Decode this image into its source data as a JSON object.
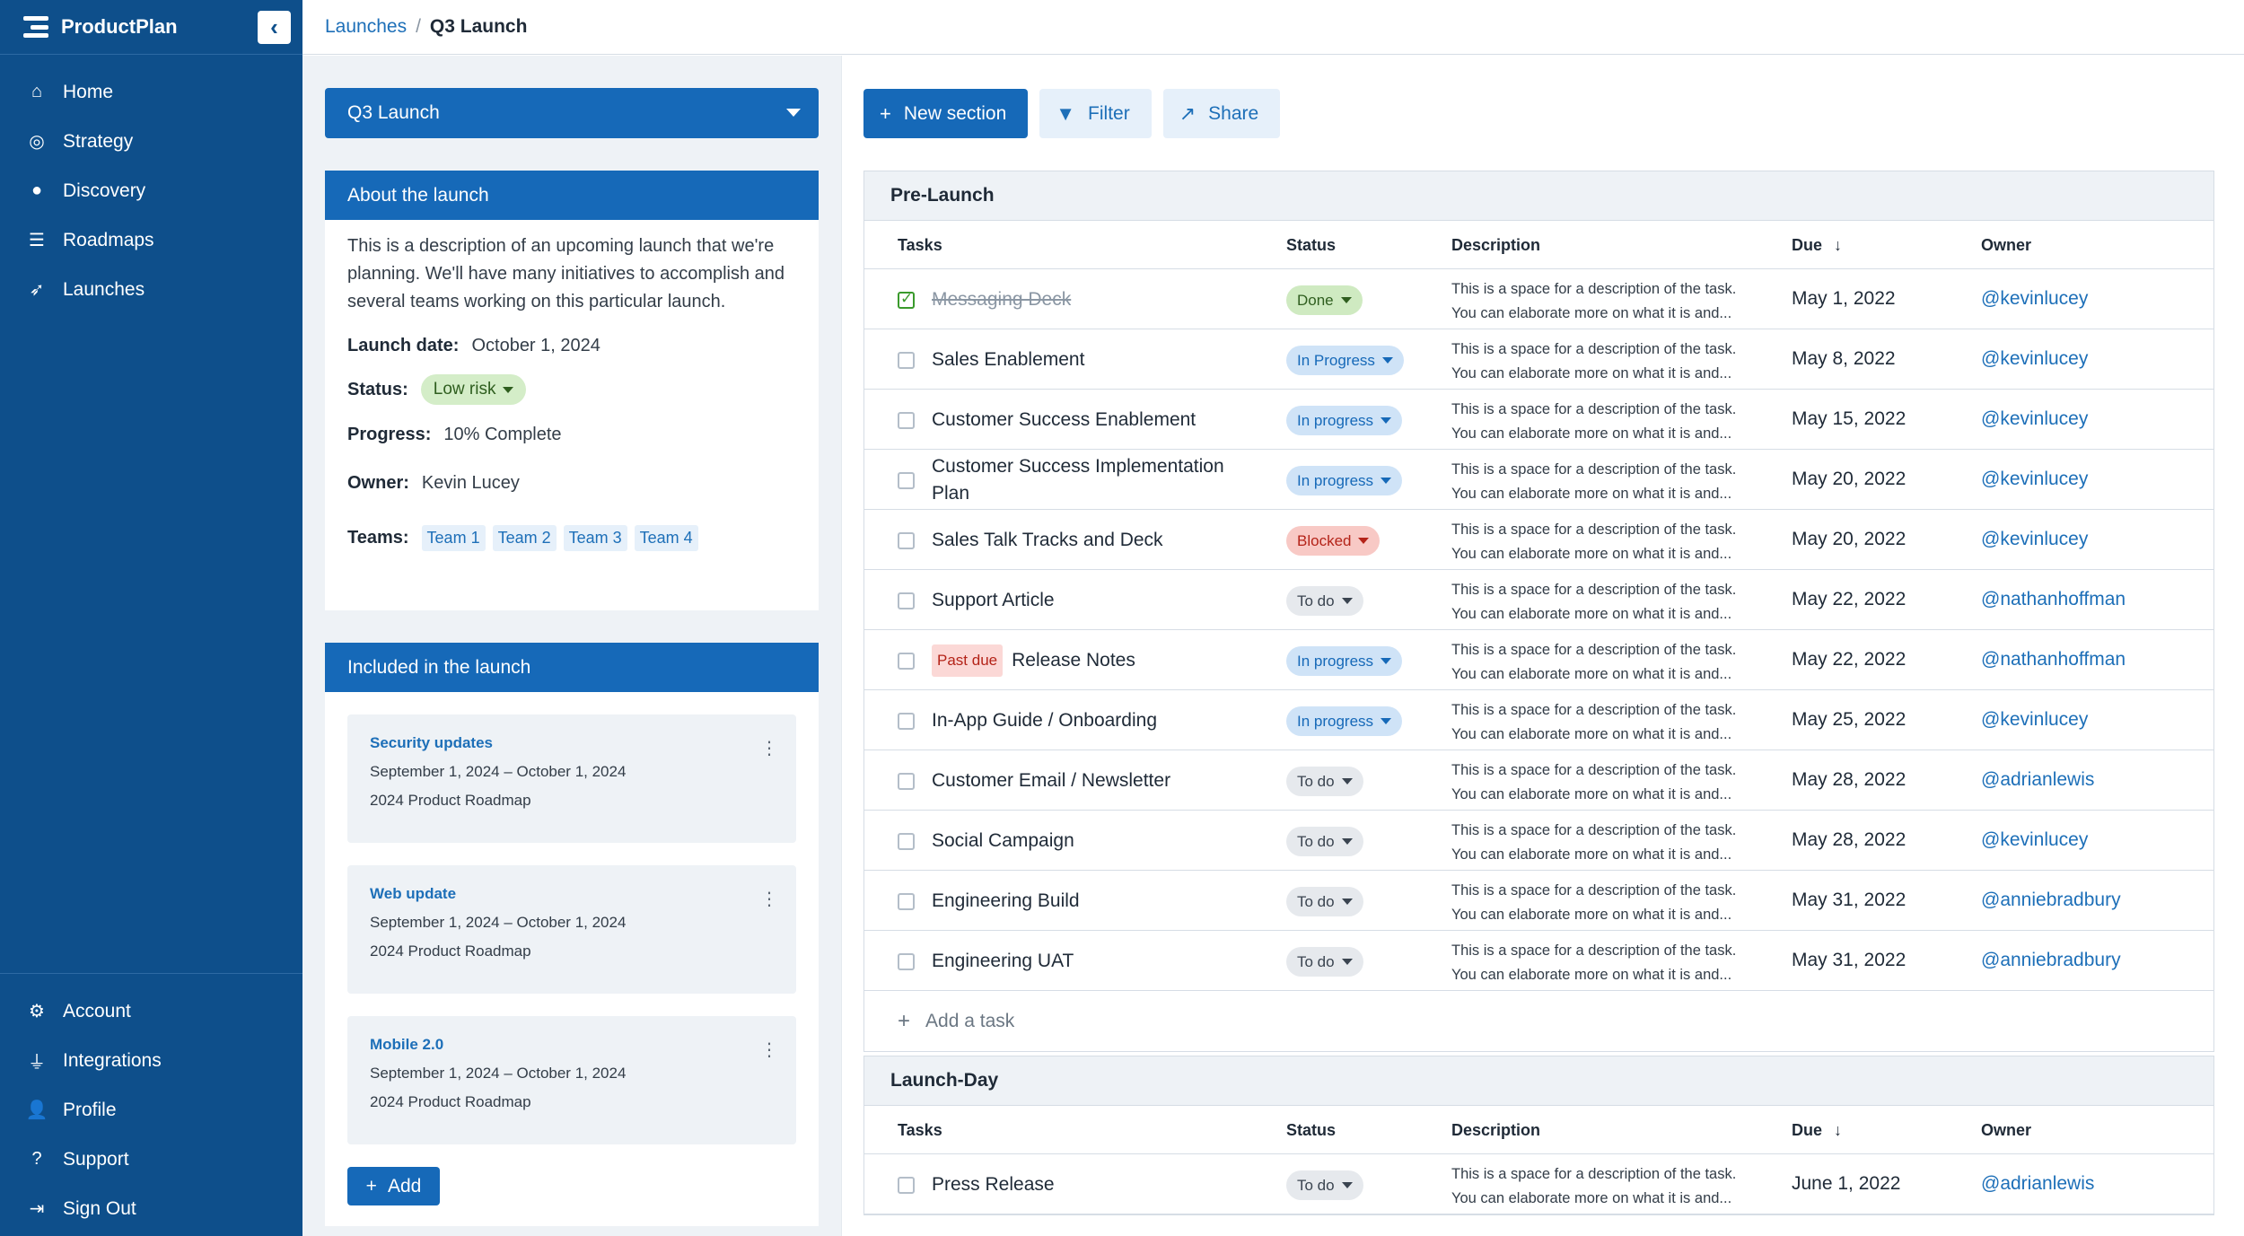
{
  "app": {
    "name": "ProductPlan",
    "collapse_icon": "chevron-left-icon"
  },
  "sidebar": {
    "items": [
      {
        "label": "Home",
        "icon": "home-icon"
      },
      {
        "label": "Strategy",
        "icon": "target-icon"
      },
      {
        "label": "Discovery",
        "icon": "lightbulb-icon"
      },
      {
        "label": "Roadmaps",
        "icon": "list-icon"
      },
      {
        "label": "Launches",
        "icon": "rocket-icon"
      }
    ],
    "bottom_items": [
      {
        "label": "Account",
        "icon": "gear-icon"
      },
      {
        "label": "Integrations",
        "icon": "plug-icon"
      },
      {
        "label": "Profile",
        "icon": "user-icon"
      },
      {
        "label": "Support",
        "icon": "help-icon"
      },
      {
        "label": "Sign Out",
        "icon": "sign-out-icon"
      }
    ]
  },
  "breadcrumb": {
    "parent": "Launches",
    "separator": "/",
    "current": "Q3 Launch"
  },
  "launch_select": {
    "value": "Q3 Launch"
  },
  "about": {
    "header": "About the launch",
    "description": "This is a description of an upcoming launch that we're planning. We'll have many initiatives to accomplish and several teams working on this particular launch.",
    "launch_date_label": "Launch date:",
    "launch_date": "October 1, 2024",
    "status_label": "Status:",
    "status": "Low risk",
    "progress_label": "Progress:",
    "progress": "10% Complete",
    "owner_label": "Owner:",
    "owner": "Kevin Lucey",
    "teams_label": "Teams:",
    "teams": [
      "Team 1",
      "Team 2",
      "Team 3",
      "Team 4"
    ]
  },
  "included": {
    "header": "Included in the launch",
    "items": [
      {
        "title": "Security updates",
        "dates": "September 1, 2024 – October 1, 2024",
        "roadmap": "2024 Product Roadmap"
      },
      {
        "title": "Web update",
        "dates": "September 1, 2024 – October 1, 2024",
        "roadmap": "2024 Product Roadmap"
      },
      {
        "title": "Mobile 2.0",
        "dates": "September 1, 2024 – October 1, 2024",
        "roadmap": "2024 Product Roadmap"
      }
    ],
    "add_label": "Add"
  },
  "toolbar": {
    "new_section": "New section",
    "filter": "Filter",
    "share": "Share"
  },
  "columns": {
    "tasks": "Tasks",
    "status": "Status",
    "description": "Description",
    "due": "Due",
    "owner": "Owner"
  },
  "desc_text": {
    "line1": "This is a space for a description of the task.",
    "line2": "You can elaborate more on what it is and..."
  },
  "sections": [
    {
      "title": "Pre-Launch",
      "add_task": "Add a task",
      "tasks": [
        {
          "name": "Messaging Deck",
          "status": "Done",
          "due": "May 1, 2022",
          "owner": "@kevinlucey"
        },
        {
          "name": "Sales Enablement",
          "status": "In Progress",
          "due": "May 8, 2022",
          "owner": "@kevinlucey"
        },
        {
          "name": "Customer Success Enablement",
          "status": "In progress",
          "due": "May 15, 2022",
          "owner": "@kevinlucey"
        },
        {
          "name": "Customer Success Implementation Plan",
          "status": "In progress",
          "due": "May 20, 2022",
          "owner": "@kevinlucey"
        },
        {
          "name": "Sales Talk Tracks and Deck",
          "status": "Blocked",
          "due": "May 20, 2022",
          "owner": "@kevinlucey"
        },
        {
          "name": "Support Article",
          "status": "To do",
          "due": "May 22, 2022",
          "owner": "@nathanhoffman"
        },
        {
          "name": "Release Notes",
          "badge": "Past due",
          "status": "In progress",
          "due": "May 22, 2022",
          "owner": "@nathanhoffman"
        },
        {
          "name": "In-App Guide / Onboarding",
          "status": "In progress",
          "due": "May 25, 2022",
          "owner": "@kevinlucey"
        },
        {
          "name": "Customer Email / Newsletter",
          "status": "To do",
          "due": "May 28, 2022",
          "owner": "@adrianlewis"
        },
        {
          "name": "Social Campaign",
          "status": "To do",
          "due": "May 28, 2022",
          "owner": "@kevinlucey"
        },
        {
          "name": "Engineering Build",
          "status": "To do",
          "due": "May 31, 2022",
          "owner": "@anniebradbury"
        },
        {
          "name": "Engineering UAT",
          "status": "To do",
          "due": "May 31, 2022",
          "owner": "@anniebradbury"
        }
      ]
    },
    {
      "title": "Launch-Day",
      "tasks": [
        {
          "name": "Press Release",
          "status": "To do",
          "due": "June 1, 2022",
          "owner": "@adrianlewis"
        }
      ]
    }
  ],
  "colors": {
    "sidebar": "#0e4f8b",
    "accent": "#1669b8",
    "link": "#1d6fb8"
  }
}
